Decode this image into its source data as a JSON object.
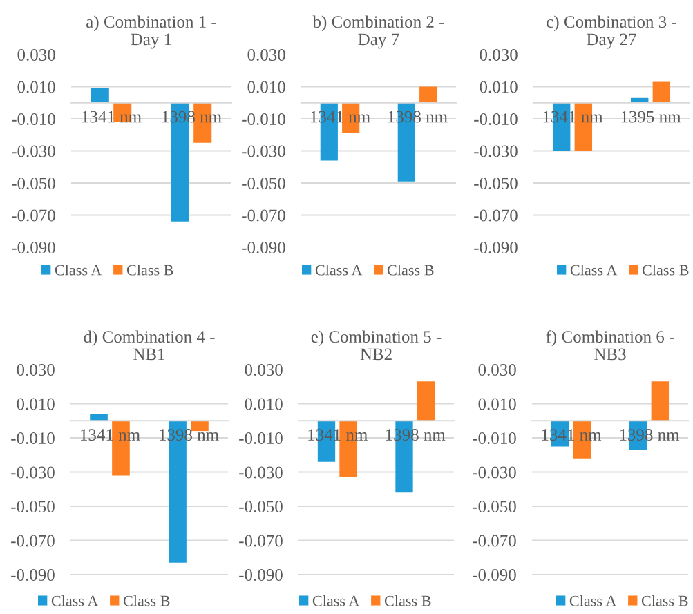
{
  "chart_data": [
    {
      "type": "bar",
      "title": "a) Combination 1 -\nDay 1",
      "categories": [
        "1341 nm",
        "1398 nm"
      ],
      "series": [
        {
          "name": "Class A",
          "color": "#1f9cd8",
          "values": [
            0.009,
            -0.074
          ]
        },
        {
          "name": "Class B",
          "color": "#fe7f22",
          "values": [
            -0.012,
            -0.025
          ]
        }
      ],
      "ylim": [
        -0.09,
        0.03
      ],
      "yticks": [
        {
          "value": -0.09,
          "label": "-0.090"
        },
        {
          "value": -0.07,
          "label": "-0.070"
        },
        {
          "value": -0.05,
          "label": "-0.050"
        },
        {
          "value": -0.03,
          "label": "-0.030"
        },
        {
          "value": -0.01,
          "label": "-0.010"
        },
        {
          "value": 0.01,
          "label": "0.010"
        },
        {
          "value": 0.03,
          "label": "0.030"
        }
      ],
      "grid": "y",
      "legend": "bottom"
    },
    {
      "type": "bar",
      "title": "b) Combination 2 -\nDay 7",
      "categories": [
        "1341 nm",
        "1398 nm"
      ],
      "series": [
        {
          "name": "Class A",
          "color": "#1f9cd8",
          "values": [
            -0.036,
            -0.049
          ]
        },
        {
          "name": "Class B",
          "color": "#fe7f22",
          "values": [
            -0.019,
            0.01
          ]
        }
      ],
      "ylim": [
        -0.09,
        0.03
      ],
      "yticks": [
        {
          "value": -0.09,
          "label": "-0.090"
        },
        {
          "value": -0.07,
          "label": "-0.070"
        },
        {
          "value": -0.05,
          "label": "-0.050"
        },
        {
          "value": -0.03,
          "label": "-0.030"
        },
        {
          "value": -0.01,
          "label": "-0.010"
        },
        {
          "value": 0.01,
          "label": "0.010"
        },
        {
          "value": 0.03,
          "label": "0.030"
        }
      ],
      "grid": "y",
      "legend": "bottom"
    },
    {
      "type": "bar",
      "title": "c) Combination 3 -\nDay 27",
      "categories": [
        "1341 nm",
        "1395 nm"
      ],
      "series": [
        {
          "name": "Class A",
          "color": "#1f9cd8",
          "values": [
            -0.03,
            0.003
          ]
        },
        {
          "name": "Class B",
          "color": "#fe7f22",
          "values": [
            -0.03,
            0.013
          ]
        }
      ],
      "ylim": [
        -0.09,
        0.03
      ],
      "yticks": [
        {
          "value": -0.09,
          "label": "-0.090"
        },
        {
          "value": -0.07,
          "label": "-0.070"
        },
        {
          "value": -0.05,
          "label": "-0.050"
        },
        {
          "value": -0.03,
          "label": "-0.030"
        },
        {
          "value": -0.01,
          "label": "-0.010"
        },
        {
          "value": 0.01,
          "label": "0.010"
        },
        {
          "value": 0.03,
          "label": "0.030"
        }
      ],
      "grid": "y",
      "legend": "bottom"
    },
    {
      "type": "bar",
      "title": "d) Combination 4 -\nNB1",
      "categories": [
        "1341 nm",
        "1398 nm"
      ],
      "series": [
        {
          "name": "Class A",
          "color": "#1f9cd8",
          "values": [
            0.004,
            -0.083
          ]
        },
        {
          "name": "Class B",
          "color": "#fe7f22",
          "values": [
            -0.032,
            -0.006
          ]
        }
      ],
      "ylim": [
        -0.09,
        0.03
      ],
      "yticks": [
        {
          "value": -0.09,
          "label": "-0.090"
        },
        {
          "value": -0.07,
          "label": "-0.070"
        },
        {
          "value": -0.05,
          "label": "-0.050"
        },
        {
          "value": -0.03,
          "label": "-0.030"
        },
        {
          "value": -0.01,
          "label": "-0.010"
        },
        {
          "value": 0.01,
          "label": "0.010"
        },
        {
          "value": 0.03,
          "label": "0.030"
        }
      ],
      "grid": "y",
      "legend": "bottom"
    },
    {
      "type": "bar",
      "title": "e) Combination 5 -\nNB2",
      "categories": [
        "1341 nm",
        "1398 nm"
      ],
      "series": [
        {
          "name": "Class A",
          "color": "#1f9cd8",
          "values": [
            -0.024,
            -0.042
          ]
        },
        {
          "name": "Class B",
          "color": "#fe7f22",
          "values": [
            -0.033,
            0.023
          ]
        }
      ],
      "ylim": [
        -0.09,
        0.03
      ],
      "yticks": [
        {
          "value": -0.09,
          "label": "-0.090"
        },
        {
          "value": -0.07,
          "label": "-0.070"
        },
        {
          "value": -0.05,
          "label": "-0.050"
        },
        {
          "value": -0.03,
          "label": "-0.030"
        },
        {
          "value": -0.01,
          "label": "-0.010"
        },
        {
          "value": 0.01,
          "label": "0.010"
        },
        {
          "value": 0.03,
          "label": "0.030"
        }
      ],
      "grid": "y",
      "legend": "bottom"
    },
    {
      "type": "bar",
      "title": "f) Combination 6 -\nNB3",
      "categories": [
        "1341 nm",
        "1398 nm"
      ],
      "series": [
        {
          "name": "Class A",
          "color": "#1f9cd8",
          "values": [
            -0.015,
            -0.017
          ]
        },
        {
          "name": "Class B",
          "color": "#fe7f22",
          "values": [
            -0.022,
            0.023
          ]
        }
      ],
      "ylim": [
        -0.09,
        0.03
      ],
      "yticks": [
        {
          "value": -0.09,
          "label": "-0.090"
        },
        {
          "value": -0.07,
          "label": "-0.070"
        },
        {
          "value": -0.05,
          "label": "-0.050"
        },
        {
          "value": -0.03,
          "label": "-0.030"
        },
        {
          "value": -0.01,
          "label": "-0.010"
        },
        {
          "value": 0.01,
          "label": "0.010"
        },
        {
          "value": 0.03,
          "label": "0.030"
        }
      ],
      "grid": "y",
      "legend": "bottom"
    }
  ]
}
